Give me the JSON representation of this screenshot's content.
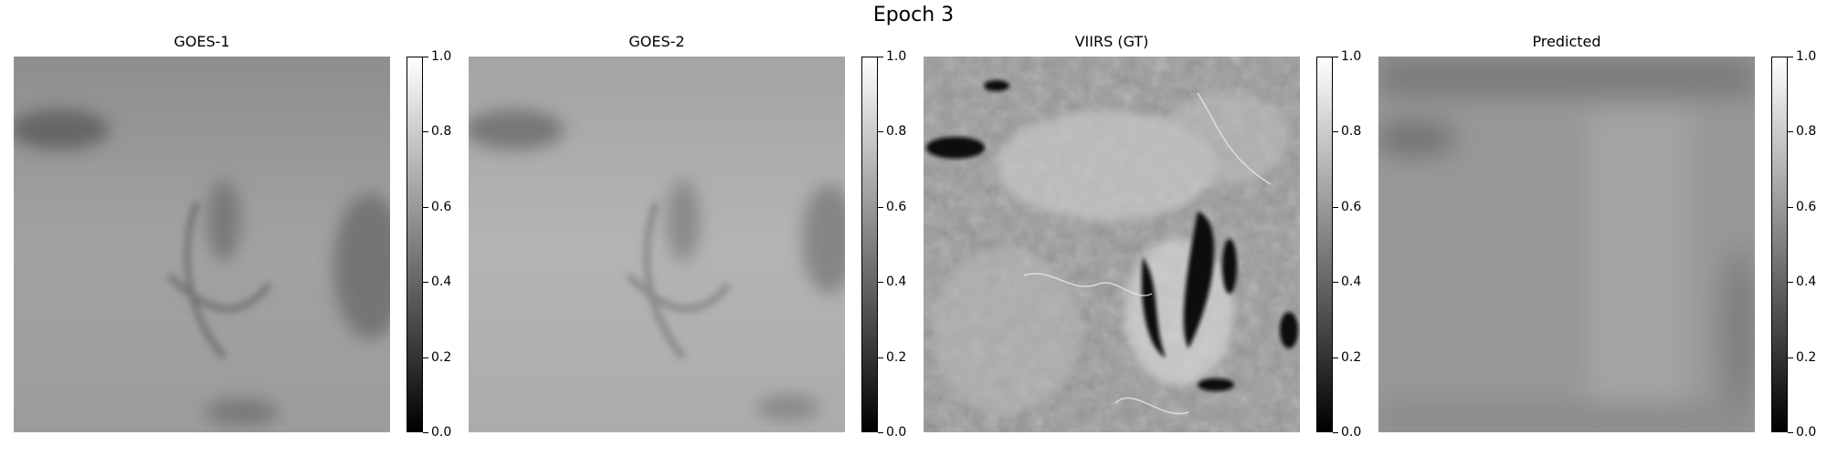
{
  "figure": {
    "suptitle": "Epoch 3",
    "panels": [
      {
        "title": "GOES-1"
      },
      {
        "title": "GOES-2"
      },
      {
        "title": "VIIRS (GT)"
      },
      {
        "title": "Predicted"
      }
    ],
    "colorbar": {
      "colormap": "gray",
      "range": [
        0.0,
        1.0
      ],
      "ticks": [
        "0.0",
        "0.2",
        "0.4",
        "0.6",
        "0.8",
        "1.0"
      ]
    }
  }
}
